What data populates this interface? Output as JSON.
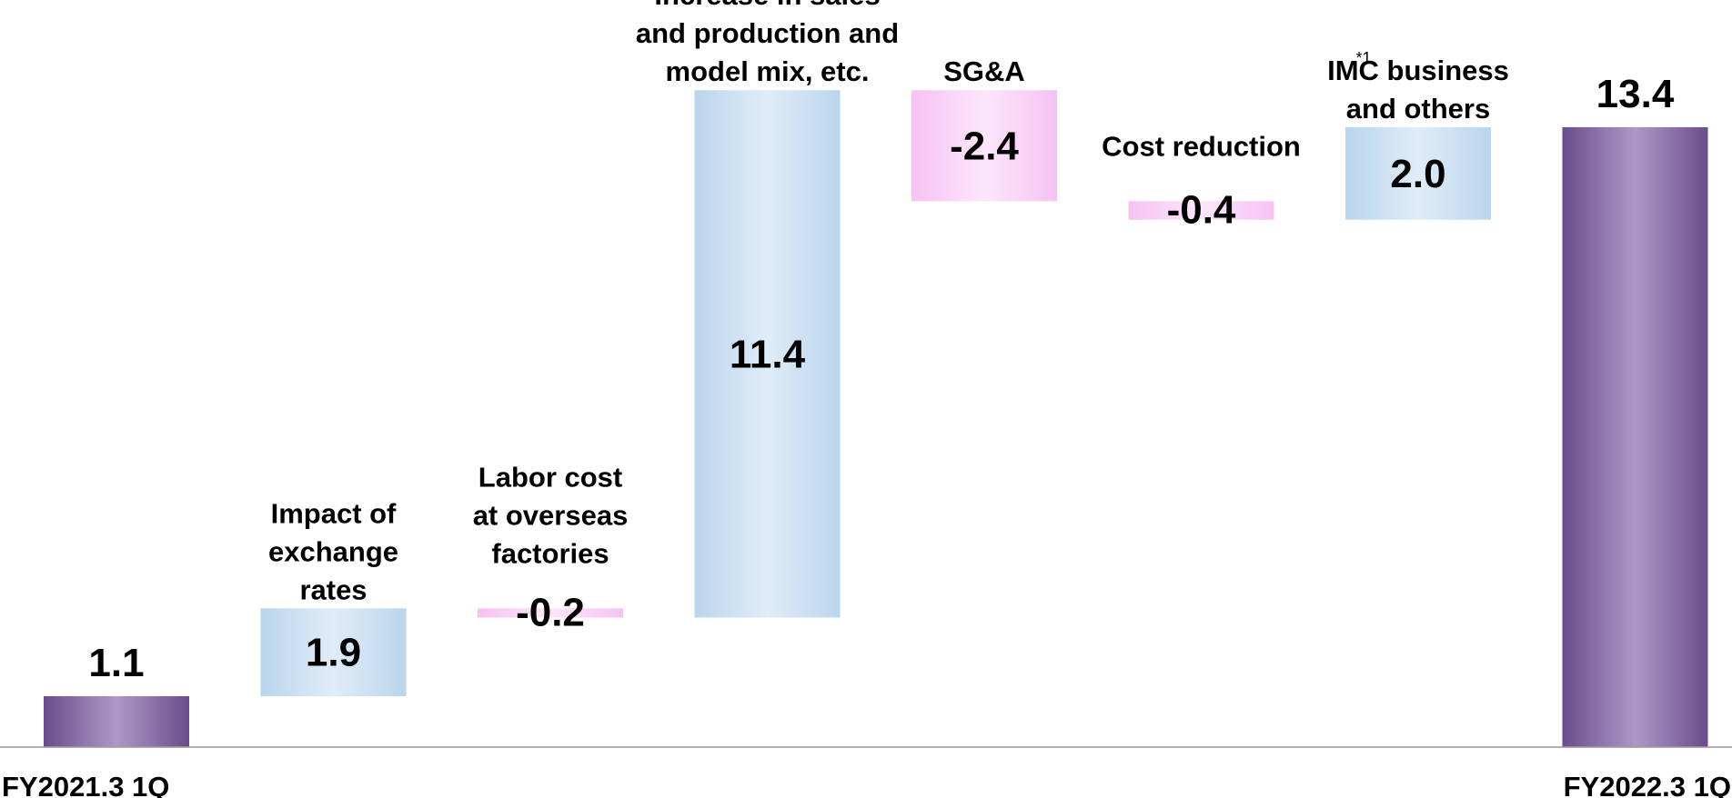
{
  "colors": {
    "total_gradient": [
      "#6a4d8c",
      "#ae98c6",
      "#6a4d8c"
    ],
    "increase_gradient": [
      "#bad5ec",
      "#e0ecf8",
      "#bad5ec"
    ],
    "decrease_gradient": [
      "#f6c2f3",
      "#fce6fb",
      "#f6c2f3"
    ],
    "axis": "#999999"
  },
  "chart_data": {
    "type": "bar",
    "subtype": "waterfall",
    "categories": [
      "FY2021.3 1Q",
      "Impact of exchange rates",
      "Labor cost at overseas factories",
      "Increase in sales and production and model mix, etc.",
      "SG&A",
      "Cost reduction",
      "IMC business and others",
      "FY2022.3 1Q"
    ],
    "values": [
      1.1,
      1.9,
      -0.2,
      11.4,
      -2.4,
      -0.4,
      2.0,
      13.4
    ],
    "value_labels": [
      "1.1",
      "1.9",
      "-0.2",
      "11.4",
      "-2.4",
      "-0.4",
      "2.0",
      "13.4"
    ],
    "kinds": [
      "total",
      "increase",
      "decrease",
      "increase",
      "decrease",
      "decrease",
      "increase",
      "total"
    ],
    "ylim": [
      0,
      14.5
    ],
    "grid": false,
    "legend": "none",
    "axis_labels": [
      "FY2021.3 1Q",
      "FY2022.3 1Q"
    ],
    "category_label_lines": [
      [],
      [
        "Impact of",
        "exchange",
        "rates"
      ],
      [
        "Labor cost",
        "at overseas",
        "factories"
      ],
      [
        "Increase in sales",
        "and production and",
        "model mix, etc."
      ],
      [
        "SG&A"
      ],
      [
        "Cost reduction"
      ],
      [
        "IMC business",
        "and others"
      ],
      []
    ],
    "footnote_marker": "*1",
    "title": "",
    "xlabel": "",
    "ylabel": ""
  }
}
